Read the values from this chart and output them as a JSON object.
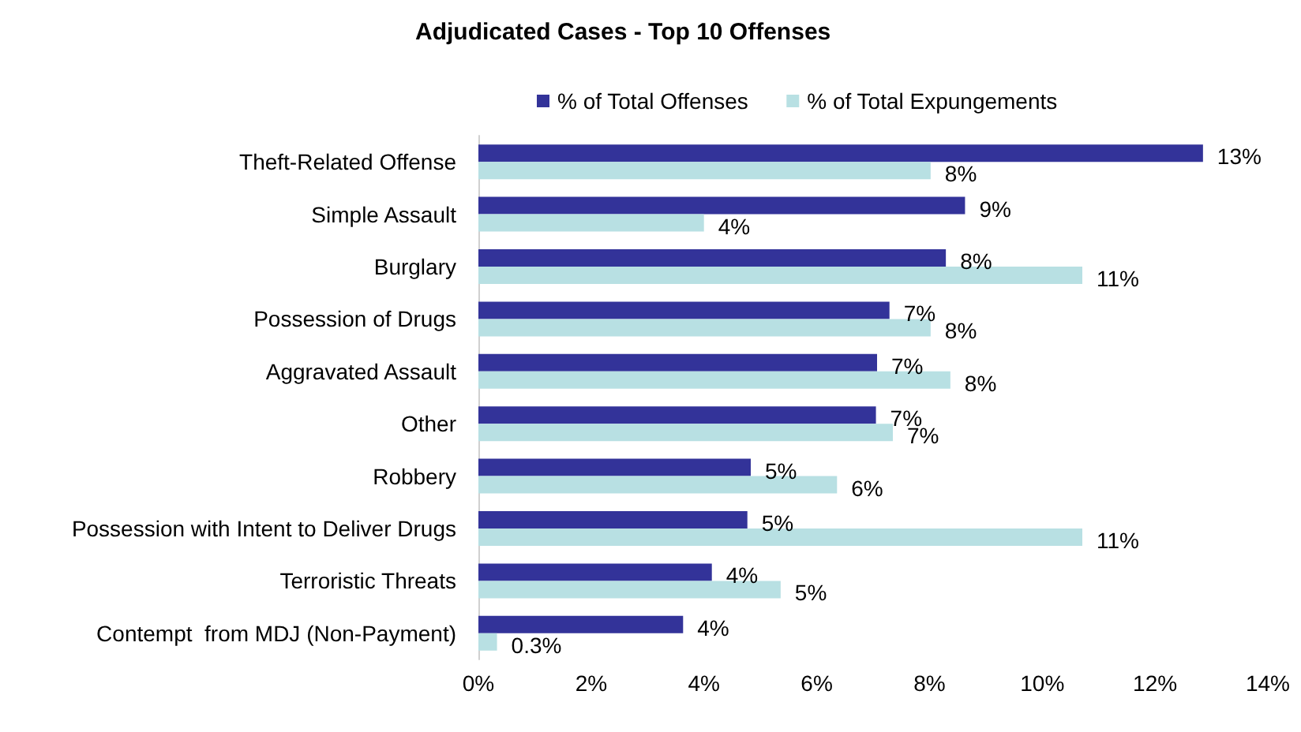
{
  "chart_data": {
    "type": "bar",
    "orientation": "horizontal",
    "title": "Adjudicated Cases - Top 10 Offenses",
    "categories": [
      "Theft-Related Offense",
      "Simple Assault",
      "Burglary",
      "Possession of Drugs",
      "Aggravated Assault",
      "Other",
      "Robbery",
      "Possession with Intent to Deliver Drugs",
      "Terroristic Threats",
      "Contempt  from MDJ (Non-Payment)"
    ],
    "series": [
      {
        "name": "% of Total Offenses",
        "color": "#333399",
        "values": [
          12.85,
          8.63,
          8.29,
          7.29,
          7.07,
          7.05,
          4.83,
          4.77,
          4.14,
          3.63
        ],
        "value_labels": [
          "13%",
          "9%",
          "8%",
          "7%",
          "7%",
          "7%",
          "5%",
          "5%",
          "4%",
          "4%"
        ]
      },
      {
        "name": "% of Total Expungements",
        "color": "#b8e0e3",
        "values": [
          8.02,
          4.0,
          10.71,
          8.02,
          8.37,
          7.35,
          6.36,
          10.71,
          5.36,
          0.33
        ],
        "value_labels": [
          "8%",
          "4%",
          "11%",
          "8%",
          "8%",
          "7%",
          "6%",
          "11%",
          "5%",
          "0.3%"
        ]
      }
    ],
    "xlim": [
      0,
      14
    ],
    "xticks": [
      {
        "value": 0,
        "label": "0%"
      },
      {
        "value": 2,
        "label": "2%"
      },
      {
        "value": 4,
        "label": "4%"
      },
      {
        "value": 6,
        "label": "6%"
      },
      {
        "value": 8,
        "label": "8%"
      },
      {
        "value": 10,
        "label": "10%"
      },
      {
        "value": 12,
        "label": "12%"
      },
      {
        "value": 14,
        "label": "14%"
      }
    ],
    "grid": false,
    "legend": "top"
  }
}
